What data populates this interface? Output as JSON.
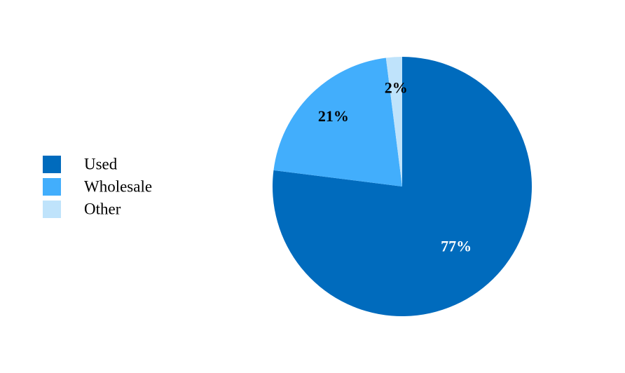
{
  "chart_data": {
    "type": "pie",
    "categories": [
      "Used",
      "Wholesale",
      "Other"
    ],
    "values": [
      77,
      21,
      2
    ],
    "value_labels": [
      "77%",
      "21%",
      "2%"
    ],
    "colors": [
      "#006bbd",
      "#42aefc",
      "#bfe3fb"
    ],
    "legend": "left"
  }
}
